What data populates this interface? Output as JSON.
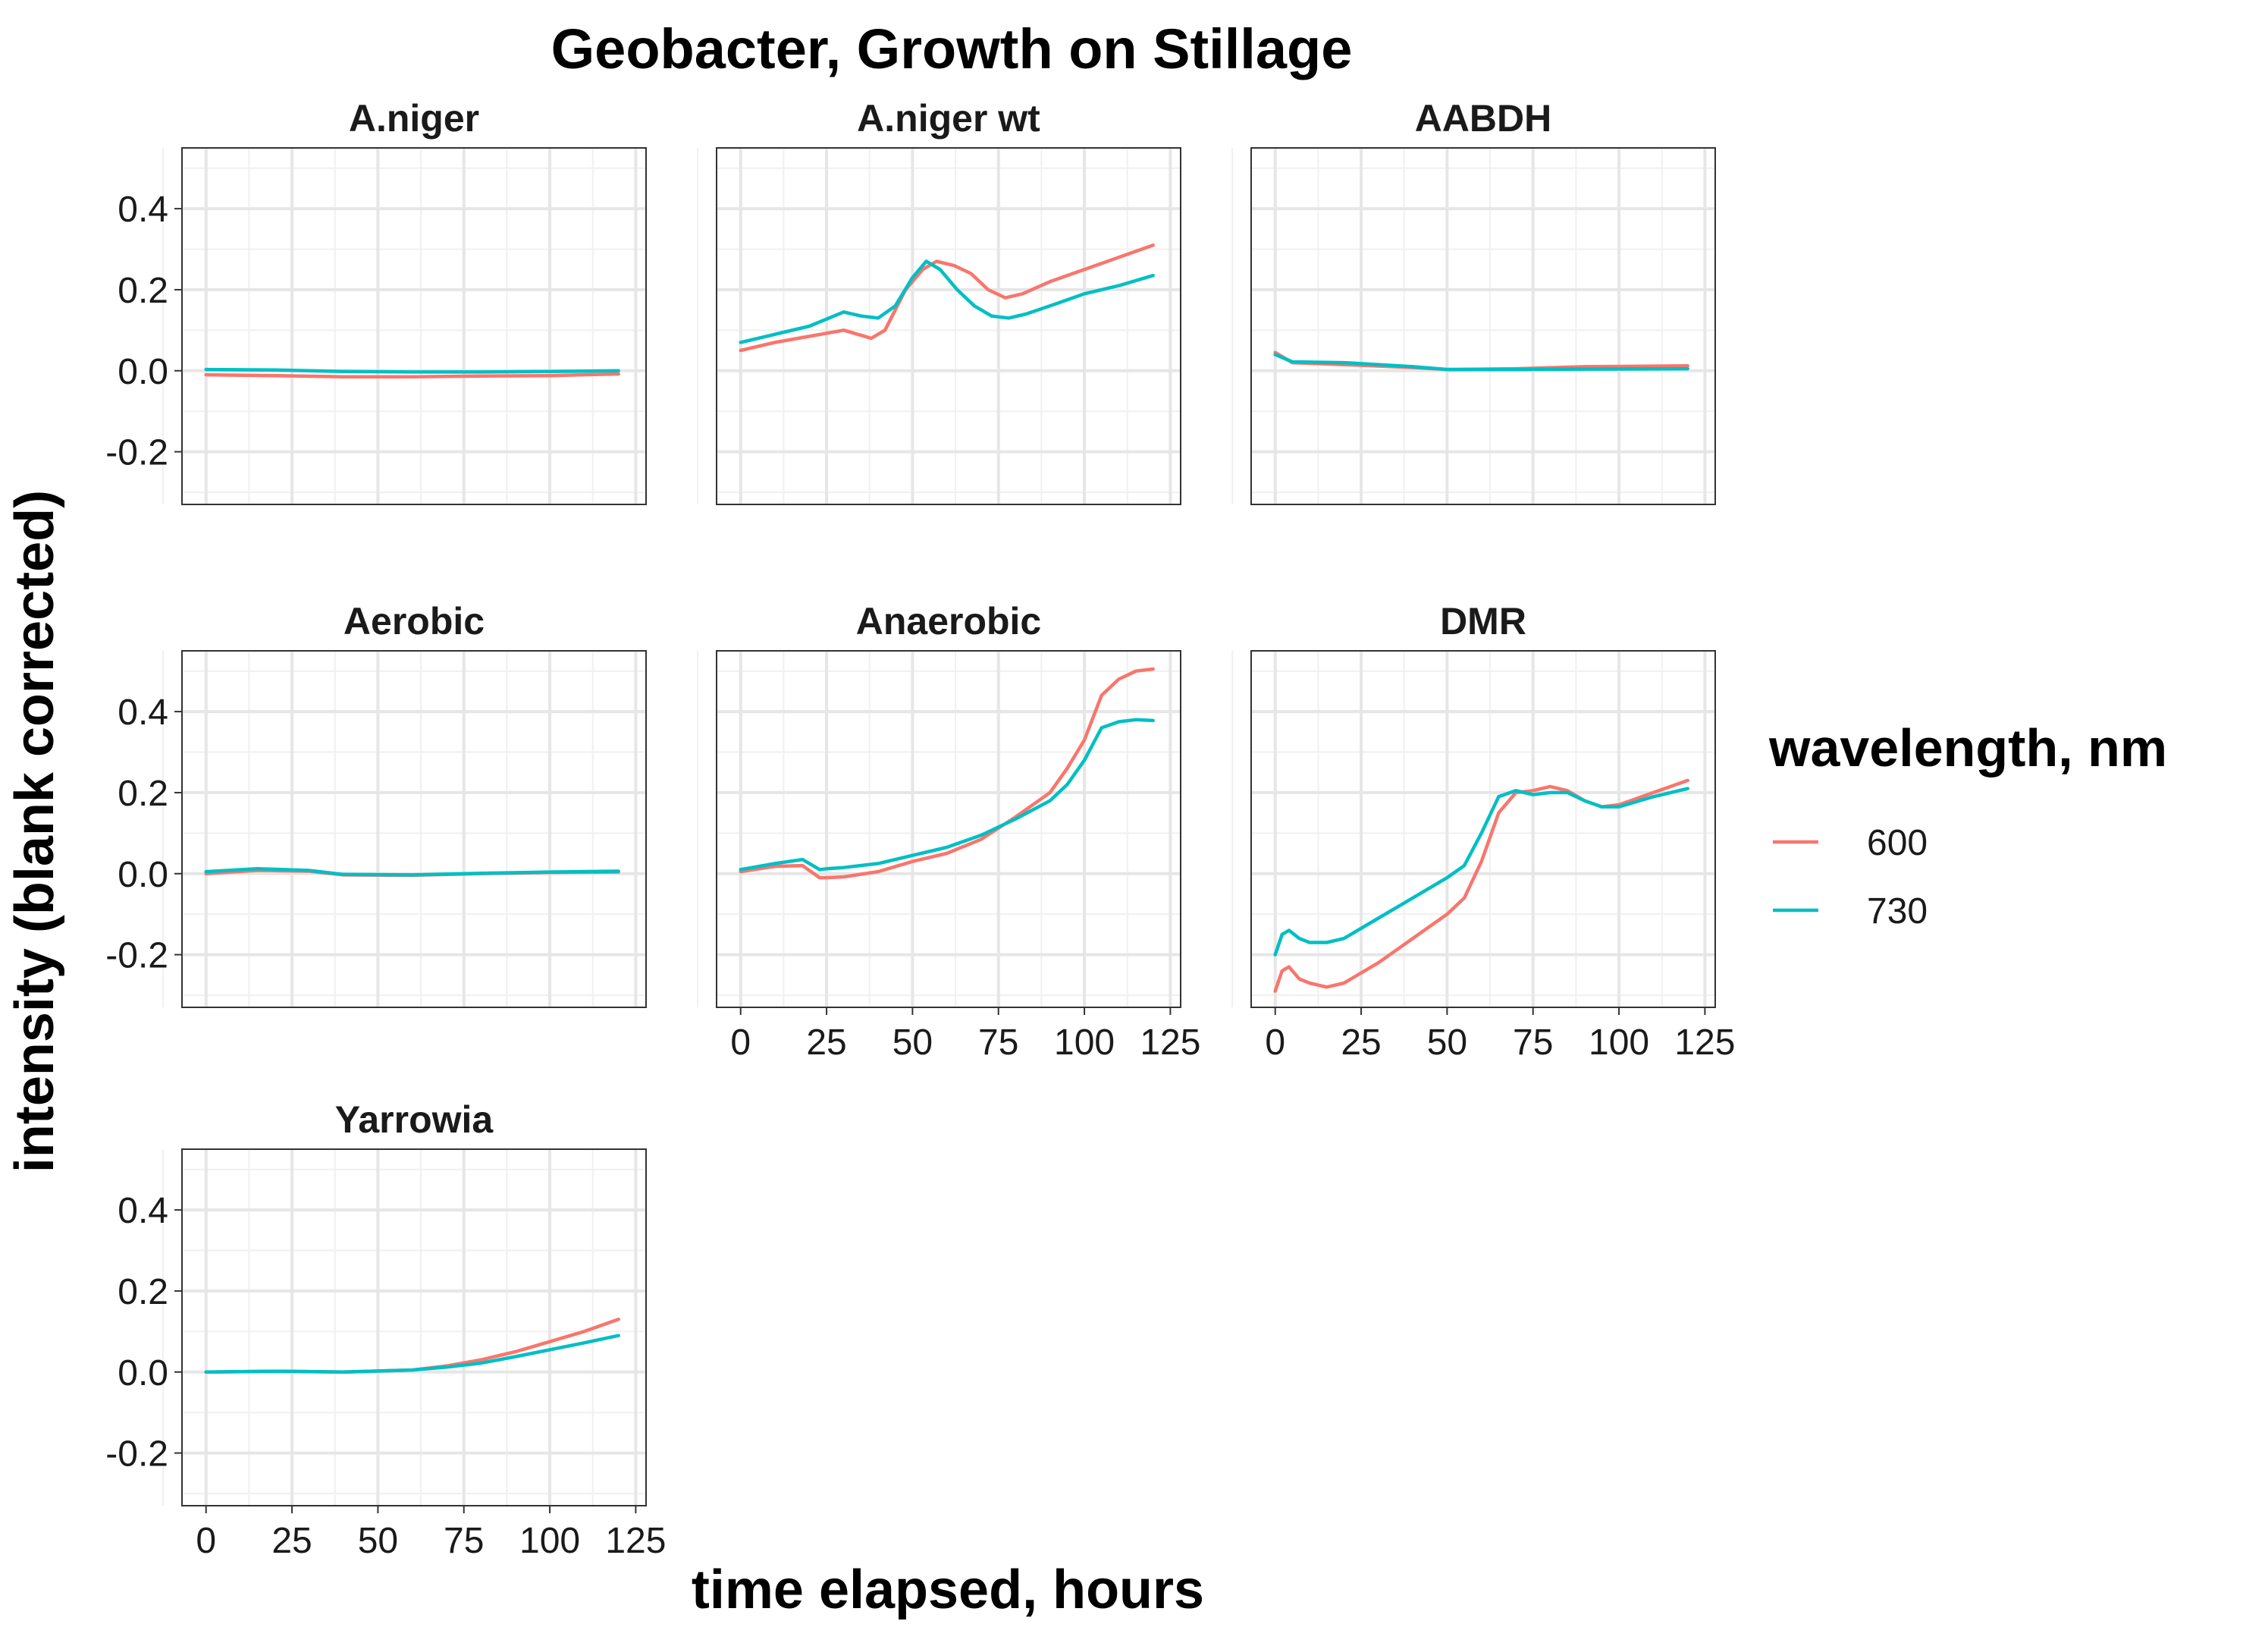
{
  "chart_data": {
    "type": "line",
    "title": "Geobacter, Growth on Stillage",
    "xlabel": "time elapsed, hours",
    "ylabel": "intensity (blank corrected)",
    "xlim": [
      -7,
      128
    ],
    "ylim": [
      -0.33,
      0.55
    ],
    "x_ticks": [
      0,
      25,
      50,
      75,
      100,
      125
    ],
    "y_ticks": [
      -0.2,
      0.0,
      0.2,
      0.4
    ],
    "y_tick_labels": [
      "-0.2",
      "0.0",
      "0.2",
      "0.4"
    ],
    "x_tick_labels": [
      "0",
      "25",
      "50",
      "75",
      "100",
      "125"
    ],
    "grid": true,
    "legend": {
      "title": "wavelength, nm",
      "position": "right",
      "entries": [
        {
          "label": "600",
          "color": "#F8766D"
        },
        {
          "label": "730",
          "color": "#00BFC4"
        }
      ]
    },
    "panels": [
      {
        "name": "A.niger",
        "series": [
          {
            "name": "600",
            "x": [
              0,
              20,
              40,
              60,
              80,
              100,
              120
            ],
            "y": [
              -0.01,
              -0.012,
              -0.015,
              -0.015,
              -0.013,
              -0.012,
              -0.008
            ]
          },
          {
            "name": "730",
            "x": [
              0,
              20,
              40,
              60,
              80,
              100,
              120
            ],
            "y": [
              0.003,
              0.002,
              -0.002,
              -0.003,
              -0.003,
              -0.002,
              0.0
            ]
          }
        ]
      },
      {
        "name": "A.niger wt",
        "series": [
          {
            "name": "600",
            "x": [
              0,
              10,
              20,
              30,
              38,
              42,
              48,
              53,
              57,
              62,
              67,
              72,
              77,
              82,
              90,
              100,
              110,
              120
            ],
            "y": [
              0.05,
              0.07,
              0.085,
              0.1,
              0.08,
              0.1,
              0.2,
              0.25,
              0.27,
              0.26,
              0.24,
              0.2,
              0.18,
              0.19,
              0.22,
              0.25,
              0.28,
              0.31
            ]
          },
          {
            "name": "730",
            "x": [
              0,
              10,
              20,
              30,
              35,
              40,
              45,
              50,
              54,
              58,
              63,
              68,
              73,
              78,
              83,
              90,
              100,
              110,
              120
            ],
            "y": [
              0.07,
              0.09,
              0.11,
              0.145,
              0.135,
              0.13,
              0.16,
              0.23,
              0.27,
              0.25,
              0.2,
              0.16,
              0.135,
              0.13,
              0.14,
              0.16,
              0.19,
              0.21,
              0.235
            ]
          }
        ]
      },
      {
        "name": "AABDH",
        "series": [
          {
            "name": "600",
            "x": [
              0,
              5,
              20,
              40,
              50,
              70,
              90,
              120
            ],
            "y": [
              0.045,
              0.02,
              0.015,
              0.008,
              0.003,
              0.005,
              0.01,
              0.012
            ]
          },
          {
            "name": "730",
            "x": [
              0,
              5,
              20,
              40,
              50,
              70,
              90,
              120
            ],
            "y": [
              0.04,
              0.022,
              0.02,
              0.01,
              0.003,
              0.003,
              0.004,
              0.005
            ]
          }
        ]
      },
      {
        "name": "Aerobic",
        "series": [
          {
            "name": "600",
            "x": [
              0,
              15,
              30,
              40,
              60,
              80,
              100,
              120
            ],
            "y": [
              0.0,
              0.008,
              0.006,
              -0.003,
              -0.004,
              0.0,
              0.003,
              0.004
            ]
          },
          {
            "name": "730",
            "x": [
              0,
              15,
              30,
              40,
              60,
              80,
              100,
              120
            ],
            "y": [
              0.005,
              0.012,
              0.008,
              -0.002,
              -0.003,
              0.001,
              0.004,
              0.006
            ]
          }
        ]
      },
      {
        "name": "Anaerobic",
        "series": [
          {
            "name": "600",
            "x": [
              0,
              10,
              18,
              23,
              25,
              30,
              40,
              50,
              60,
              70,
              80,
              90,
              95,
              100,
              105,
              110,
              115,
              120
            ],
            "y": [
              0.005,
              0.018,
              0.02,
              -0.01,
              -0.01,
              -0.008,
              0.005,
              0.03,
              0.05,
              0.085,
              0.14,
              0.2,
              0.26,
              0.33,
              0.44,
              0.48,
              0.5,
              0.505
            ]
          },
          {
            "name": "730",
            "x": [
              0,
              10,
              18,
              23,
              25,
              30,
              40,
              50,
              60,
              70,
              80,
              90,
              95,
              100,
              105,
              110,
              115,
              120
            ],
            "y": [
              0.01,
              0.025,
              0.035,
              0.01,
              0.012,
              0.015,
              0.025,
              0.045,
              0.065,
              0.095,
              0.135,
              0.18,
              0.22,
              0.28,
              0.36,
              0.375,
              0.38,
              0.378
            ]
          }
        ]
      },
      {
        "name": "DMR",
        "series": [
          {
            "name": "600",
            "x": [
              0,
              2,
              4,
              7,
              10,
              15,
              20,
              30,
              40,
              50,
              55,
              60,
              65,
              70,
              75,
              80,
              85,
              90,
              95,
              100,
              110,
              120
            ],
            "y": [
              -0.29,
              -0.24,
              -0.23,
              -0.26,
              -0.27,
              -0.28,
              -0.27,
              -0.22,
              -0.16,
              -0.1,
              -0.06,
              0.03,
              0.15,
              0.2,
              0.205,
              0.215,
              0.205,
              0.18,
              0.165,
              0.17,
              0.2,
              0.23
            ]
          },
          {
            "name": "730",
            "x": [
              0,
              2,
              4,
              7,
              10,
              15,
              20,
              30,
              40,
              50,
              55,
              60,
              65,
              70,
              75,
              80,
              85,
              90,
              95,
              100,
              110,
              120
            ],
            "y": [
              -0.2,
              -0.15,
              -0.14,
              -0.16,
              -0.17,
              -0.17,
              -0.16,
              -0.11,
              -0.06,
              -0.01,
              0.02,
              0.1,
              0.19,
              0.205,
              0.195,
              0.2,
              0.2,
              0.18,
              0.165,
              0.165,
              0.19,
              0.21
            ]
          }
        ]
      },
      {
        "name": "Yarrowia",
        "series": [
          {
            "name": "600",
            "x": [
              0,
              20,
              40,
              60,
              70,
              80,
              90,
              100,
              110,
              120
            ],
            "y": [
              0.0,
              0.002,
              0.0,
              0.005,
              0.015,
              0.03,
              0.05,
              0.075,
              0.1,
              0.13
            ]
          },
          {
            "name": "730",
            "x": [
              0,
              20,
              40,
              60,
              70,
              80,
              90,
              100,
              110,
              120
            ],
            "y": [
              0.0,
              0.002,
              0.0,
              0.005,
              0.012,
              0.022,
              0.038,
              0.055,
              0.072,
              0.09
            ]
          }
        ]
      }
    ]
  }
}
